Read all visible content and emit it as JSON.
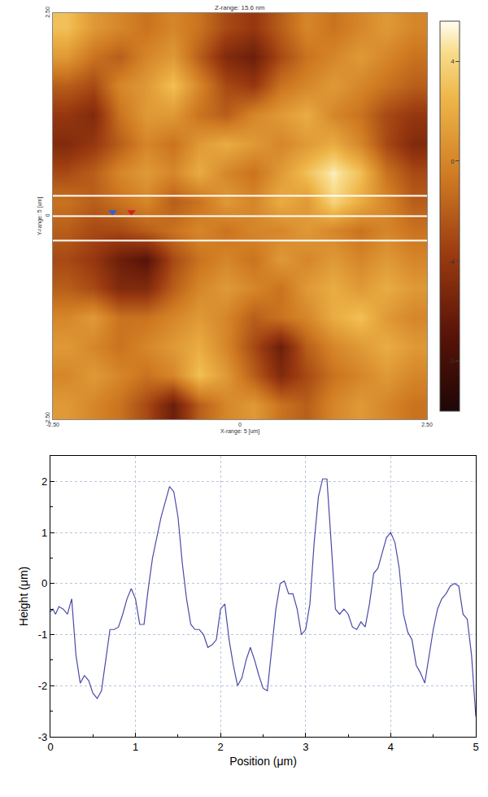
{
  "chart_data": [
    {
      "type": "heatmap",
      "title": "Z-range: 15.6 nm",
      "x_label": "X-range: 5 [um]",
      "y_label": "Y-range: 5 [um]",
      "xlim": [
        -2.5,
        2.5
      ],
      "ylim": [
        -2.5,
        2.5
      ],
      "xticks": [
        {
          "value": -2.5,
          "label": "-2.50"
        },
        0,
        {
          "value": 2.5,
          "label": "2.50"
        }
      ],
      "yticks": [
        {
          "value": -2.5,
          "label": "-2.50"
        },
        0,
        {
          "value": 2.5,
          "label": "2.50"
        }
      ],
      "x": [
        -2.32,
        -1.96,
        -1.61,
        -1.25,
        -0.89,
        -0.54,
        -0.18,
        0.18,
        0.54,
        0.89,
        1.25,
        1.61,
        1.96,
        2.32
      ],
      "y": [
        2.32,
        1.96,
        1.61,
        1.25,
        0.89,
        0.54,
        0.18,
        -0.18,
        -0.54,
        -0.89,
        -1.25,
        -1.61,
        -1.96,
        -2.32
      ],
      "z": [
        [
          3,
          1,
          0,
          -1,
          0,
          -1,
          -3,
          -4,
          -2,
          0,
          -1,
          0,
          1,
          0
        ],
        [
          1,
          -1,
          -2,
          0,
          1,
          -2,
          -5,
          -6,
          -3,
          -1,
          0,
          1,
          0,
          -1
        ],
        [
          -2,
          -3,
          0,
          1,
          3,
          0,
          -3,
          -4,
          -1,
          0,
          1,
          0,
          -1,
          -2
        ],
        [
          -4,
          -5,
          -1,
          1,
          1,
          -1,
          -2,
          0,
          1,
          2,
          0,
          -1,
          -3,
          -4
        ],
        [
          -5,
          -4,
          -2,
          0,
          -1,
          1,
          2,
          1,
          0,
          1,
          2,
          0,
          -3,
          -5
        ],
        [
          -3,
          -2,
          0,
          1,
          0,
          2,
          0,
          -1,
          1,
          3,
          5,
          3,
          -1,
          -3
        ],
        [
          -1,
          -2,
          -1,
          0,
          -2,
          -1,
          1,
          0,
          2,
          1,
          4,
          2,
          0,
          -2
        ],
        [
          -2,
          -3,
          -3,
          -2,
          -1,
          0,
          -1,
          0,
          0,
          1,
          0,
          -1,
          0,
          -1
        ],
        [
          -3,
          -4,
          -6,
          -7,
          -3,
          -1,
          0,
          -1,
          1,
          0,
          1,
          0,
          1,
          0
        ],
        [
          -2,
          -3,
          -5,
          -5,
          -2,
          0,
          1,
          0,
          -1,
          1,
          2,
          1,
          2,
          1
        ],
        [
          0,
          1,
          -1,
          -1,
          0,
          1,
          0,
          -2,
          -1,
          0,
          2,
          3,
          1,
          0
        ],
        [
          1,
          0,
          -1,
          0,
          1,
          2,
          0,
          -3,
          -6,
          -2,
          0,
          1,
          2,
          1
        ],
        [
          0,
          1,
          0,
          -1,
          0,
          3,
          1,
          -2,
          -5,
          -3,
          -1,
          0,
          1,
          0
        ],
        [
          1,
          0,
          -1,
          -3,
          -6,
          -2,
          0,
          1,
          -1,
          -2,
          0,
          1,
          0,
          -1
        ]
      ],
      "zlim": [
        -10,
        5.6
      ],
      "zticks": [
        4,
        0,
        -4,
        -8
      ],
      "profile_lines": [
        0.25,
        0,
        -0.3
      ],
      "cursors": [
        {
          "x": -1.7,
          "y": 0.05,
          "color": "#2f5fd0"
        },
        {
          "x": -1.45,
          "y": 0.05,
          "color": "#d02020"
        }
      ]
    },
    {
      "type": "line",
      "x_label": "Position (μm)",
      "y_label": "Height (μm)",
      "xlim": [
        0,
        5
      ],
      "ylim": [
        -3,
        2.5
      ],
      "xticks": [
        0,
        1,
        2,
        3,
        4,
        5
      ],
      "yticks": [
        -3,
        -2,
        -1,
        0,
        1,
        2
      ],
      "grid": true,
      "color": "#4a4aa8",
      "x": [
        0,
        0.03,
        0.06,
        0.1,
        0.15,
        0.2,
        0.25,
        0.3,
        0.35,
        0.4,
        0.45,
        0.5,
        0.55,
        0.6,
        0.65,
        0.7,
        0.75,
        0.8,
        0.85,
        0.9,
        0.95,
        1.0,
        1.05,
        1.1,
        1.15,
        1.2,
        1.3,
        1.4,
        1.45,
        1.5,
        1.55,
        1.6,
        1.65,
        1.7,
        1.75,
        1.8,
        1.85,
        1.9,
        1.95,
        2.0,
        2.05,
        2.1,
        2.15,
        2.2,
        2.25,
        2.3,
        2.35,
        2.4,
        2.45,
        2.5,
        2.55,
        2.6,
        2.65,
        2.7,
        2.75,
        2.8,
        2.85,
        2.9,
        2.95,
        3.0,
        3.05,
        3.1,
        3.15,
        3.2,
        3.25,
        3.3,
        3.35,
        3.4,
        3.45,
        3.5,
        3.55,
        3.6,
        3.65,
        3.7,
        3.75,
        3.8,
        3.85,
        3.9,
        3.95,
        4.0,
        4.05,
        4.1,
        4.15,
        4.2,
        4.25,
        4.3,
        4.35,
        4.4,
        4.45,
        4.5,
        4.55,
        4.6,
        4.65,
        4.7,
        4.75,
        4.8,
        4.85,
        4.9,
        4.95,
        5.0
      ],
      "values": [
        -0.55,
        -0.5,
        -0.6,
        -0.45,
        -0.5,
        -0.6,
        -0.3,
        -1.4,
        -1.95,
        -1.8,
        -1.9,
        -2.15,
        -2.25,
        -2.1,
        -1.5,
        -0.9,
        -0.9,
        -0.85,
        -0.6,
        -0.3,
        -0.1,
        -0.3,
        -0.8,
        -0.8,
        -0.1,
        0.5,
        1.3,
        1.9,
        1.8,
        1.3,
        0.4,
        -0.3,
        -0.8,
        -0.9,
        -0.9,
        -1.0,
        -1.25,
        -1.2,
        -1.1,
        -0.5,
        -0.4,
        -1.1,
        -1.6,
        -2.0,
        -1.85,
        -1.5,
        -1.25,
        -1.5,
        -1.8,
        -2.05,
        -2.1,
        -1.3,
        -0.5,
        0.0,
        0.05,
        -0.2,
        -0.2,
        -0.5,
        -1.0,
        -0.9,
        -0.4,
        0.8,
        1.7,
        2.05,
        2.05,
        0.8,
        -0.5,
        -0.6,
        -0.5,
        -0.6,
        -0.85,
        -0.9,
        -0.75,
        -0.85,
        -0.4,
        0.2,
        0.3,
        0.6,
        0.9,
        1.0,
        0.8,
        0.3,
        -0.6,
        -0.95,
        -1.1,
        -1.6,
        -1.75,
        -1.95,
        -1.4,
        -0.9,
        -0.5,
        -0.3,
        -0.2,
        -0.05,
        0.0,
        -0.05,
        -0.6,
        -0.7,
        -1.4,
        -2.6
      ]
    }
  ]
}
